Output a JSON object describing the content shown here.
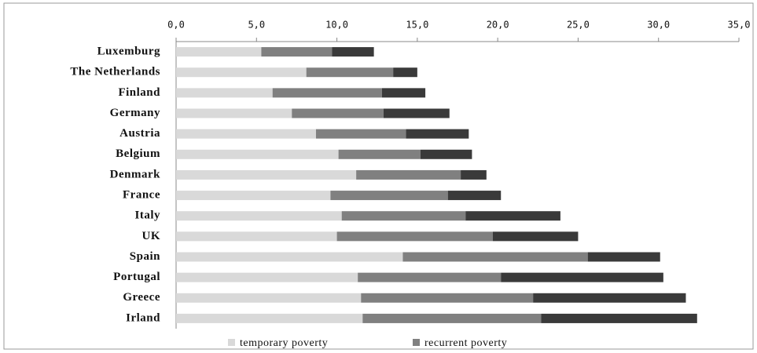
{
  "chart_data": {
    "type": "stacked-bar-horizontal",
    "categories": [
      "Luxemburg",
      "The Netherlands",
      "Finland",
      "Germany",
      "Austria",
      "Belgium",
      "Denmark",
      "France",
      "Italy",
      "UK",
      "Spain",
      "Portugal",
      "Greece",
      "Irland"
    ],
    "series": [
      {
        "name": "temporary poverty",
        "color": "#d9d9d9",
        "values": [
          5.3,
          8.1,
          6.0,
          7.2,
          8.7,
          10.1,
          11.2,
          9.6,
          10.3,
          10.0,
          14.1,
          11.3,
          11.5,
          11.6
        ]
      },
      {
        "name": "recurrent poverty",
        "color": "#808080",
        "values": [
          4.4,
          5.4,
          6.8,
          5.7,
          5.6,
          5.1,
          6.5,
          7.3,
          7.7,
          9.7,
          11.5,
          8.9,
          10.7,
          11.1
        ]
      },
      {
        "color": "#3a3a3a",
        "values": [
          2.6,
          1.5,
          2.7,
          4.1,
          3.9,
          3.2,
          1.6,
          3.3,
          5.9,
          5.3,
          4.5,
          10.1,
          9.5,
          9.7
        ]
      }
    ],
    "xlim": [
      0,
      35
    ],
    "xticks": [
      {
        "value": 0,
        "label": "0,0"
      },
      {
        "value": 5,
        "label": "5,0"
      },
      {
        "value": 10,
        "label": "10,0"
      },
      {
        "value": 15,
        "label": "15,0"
      },
      {
        "value": 20,
        "label": "20,0"
      },
      {
        "value": 25,
        "label": "25,0"
      },
      {
        "value": 30,
        "label": "30,0"
      },
      {
        "value": 35,
        "label": "35,0"
      }
    ],
    "axis_position": "top",
    "legend": "bottom"
  }
}
